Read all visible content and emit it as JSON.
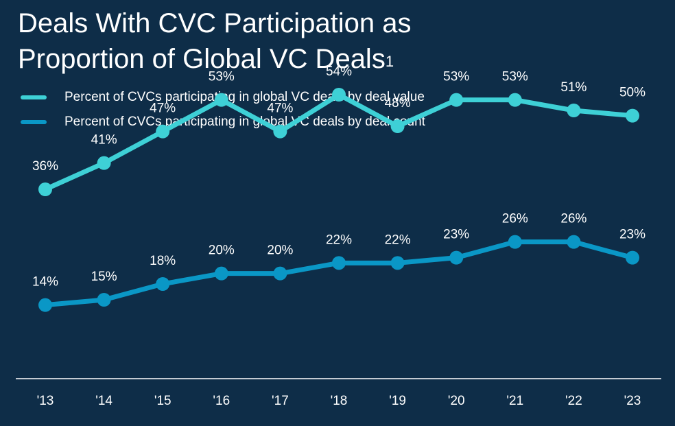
{
  "title": "Deals With CVC Participation as Proportion of Global VC Deals",
  "title_footnote": "1",
  "colors": {
    "background": "#0e2d48",
    "value_series": "#3ed0d6",
    "count_series": "#0a97c6",
    "axis": "#ffffff"
  },
  "chart_data": {
    "type": "line",
    "categories": [
      "'13",
      "'14",
      "'15",
      "'16",
      "'17",
      "'18",
      "'19",
      "'20",
      "'21",
      "'22",
      "'23"
    ],
    "series": [
      {
        "name": "Percent of CVCs participating in global VC deals by deal value",
        "values": [
          36,
          41,
          47,
          53,
          47,
          54,
          48,
          53,
          53,
          51,
          50
        ],
        "labels": [
          "36%",
          "41%",
          "47%",
          "53%",
          "47%",
          "54%",
          "48%",
          "53%",
          "53%",
          "51%",
          "50%"
        ]
      },
      {
        "name": "Percent of CVCs participating in global VC deals by deal count",
        "values": [
          14,
          15,
          18,
          20,
          20,
          22,
          22,
          23,
          26,
          26,
          23
        ],
        "labels": [
          "14%",
          "15%",
          "18%",
          "20%",
          "20%",
          "22%",
          "22%",
          "23%",
          "26%",
          "26%",
          "23%"
        ]
      }
    ],
    "ylim": [
      0,
      60
    ],
    "grid": false,
    "legend_position": "top-left"
  }
}
